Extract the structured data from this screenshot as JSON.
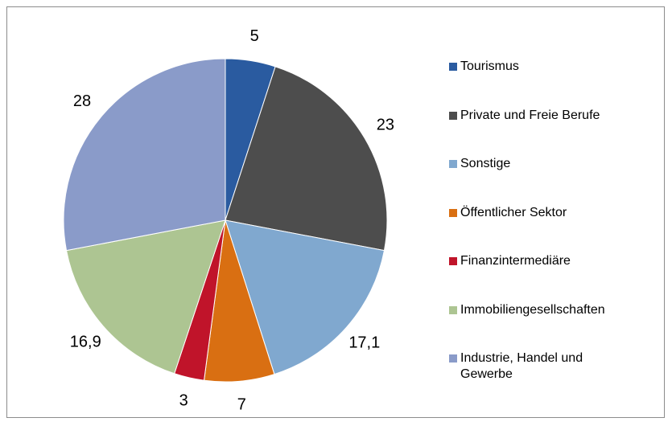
{
  "chart_data": {
    "type": "pie",
    "categories": [
      "Tourismus",
      "Private und Freie Berufe",
      "Sonstige",
      "Öffentlicher Sektor",
      "Finanzintermediäre",
      "Immobiliengesellschaften",
      "Industrie, Handel und Gewerbe"
    ],
    "values": [
      5,
      23,
      17.1,
      7,
      3,
      16.9,
      28
    ],
    "value_labels": [
      "5",
      "23",
      "17,1",
      "7",
      "3",
      "16,9",
      "28"
    ],
    "colors": [
      "#2a5ba0",
      "#4d4d4d",
      "#80a8cf",
      "#d96f12",
      "#c0142a",
      "#adc592",
      "#8a9bc9"
    ],
    "legend": "right"
  }
}
